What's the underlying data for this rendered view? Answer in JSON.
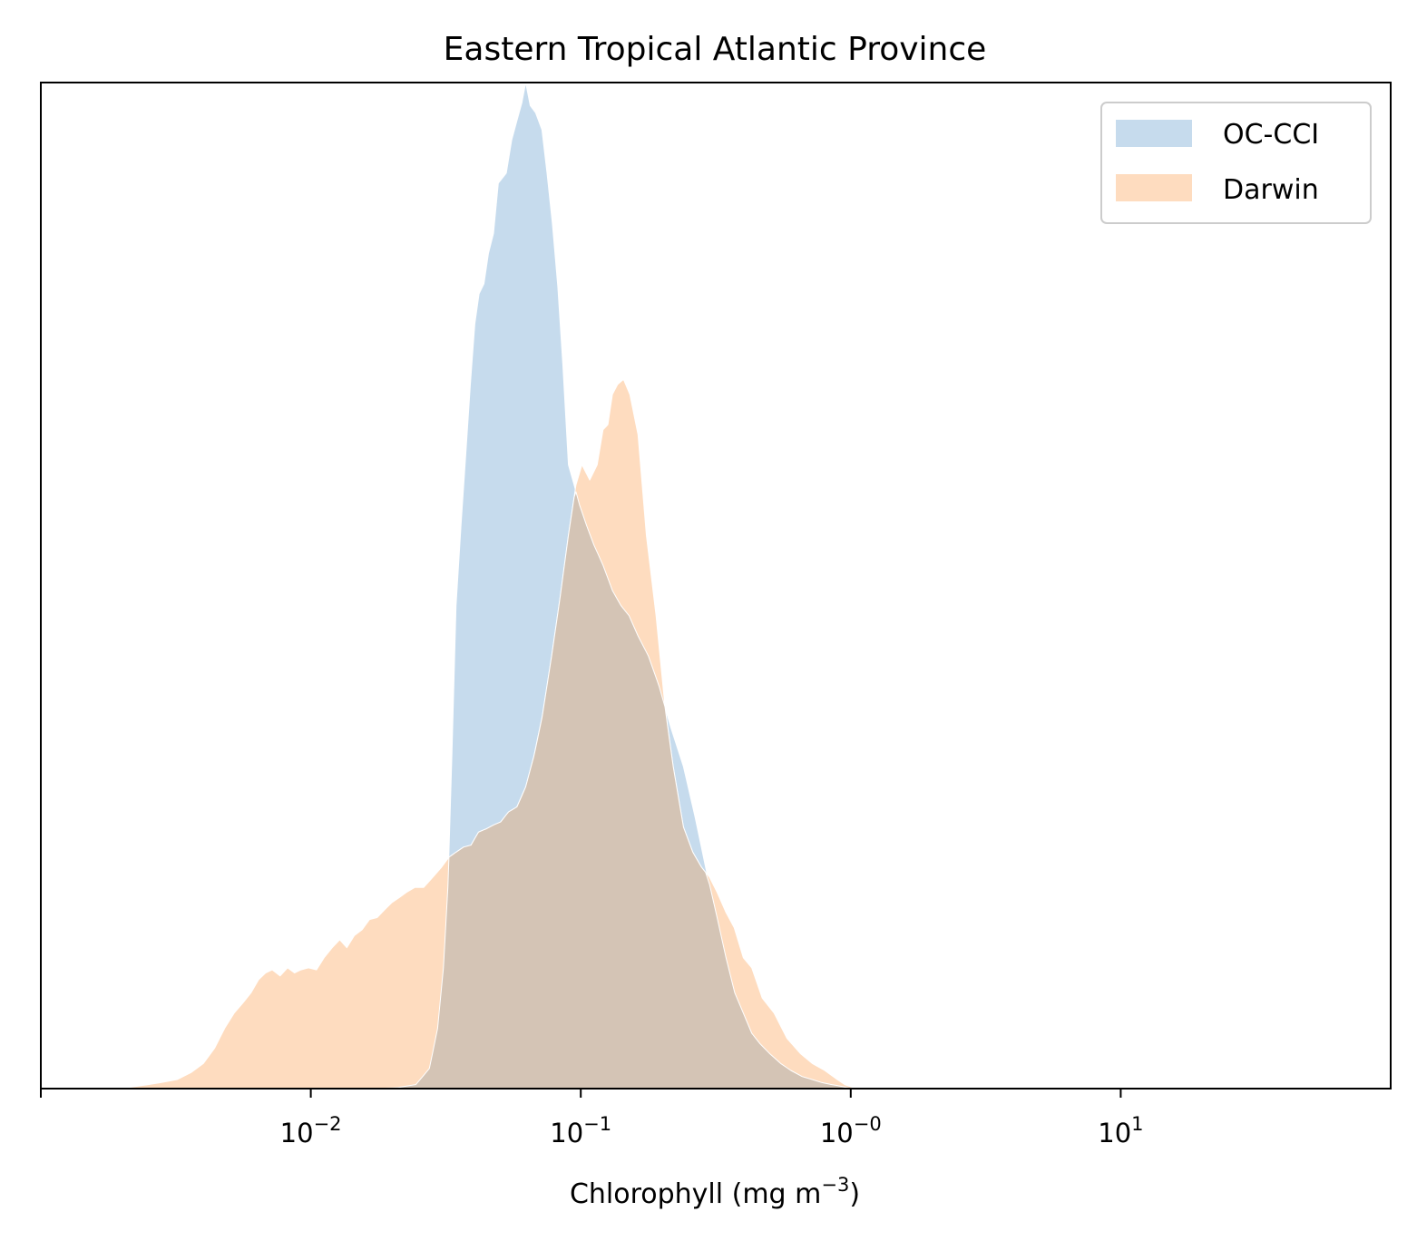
{
  "chart_data": {
    "type": "area",
    "title": "Eastern Tropical Atlantic Province",
    "xlabel_main": "Chlorophyll  (mg m",
    "xlabel_sup": "−3",
    "xlabel_close": ")",
    "ylabel": "",
    "x_scale": "log",
    "xlim": [
      0.001,
      100
    ],
    "ylim": [
      0,
      1
    ],
    "grid": false,
    "y_ticks_visible": false,
    "legend_position": "upper right",
    "x_ticks": [
      {
        "value": 0.001,
        "base": "",
        "exp": ""
      },
      {
        "value": 0.01,
        "base": "10",
        "exp": "−2"
      },
      {
        "value": 0.1,
        "base": "10",
        "exp": "−1"
      },
      {
        "value": 1,
        "base": "10",
        "exp": "−0"
      },
      {
        "value": 10,
        "base": "10",
        "exp": "1"
      }
    ],
    "series": [
      {
        "name": "OC-CCI",
        "color": "#c6dbed",
        "x": [
          0.0174,
          0.021,
          0.0245,
          0.0275,
          0.0295,
          0.031,
          0.0322,
          0.0333,
          0.0345,
          0.036,
          0.0375,
          0.039,
          0.0405,
          0.042,
          0.0438,
          0.0455,
          0.0475,
          0.0495,
          0.0512,
          0.053,
          0.0555,
          0.058,
          0.0605,
          0.0625,
          0.065,
          0.068,
          0.0718,
          0.075,
          0.0785,
          0.0822,
          0.0858,
          0.09,
          0.0945,
          0.099,
          0.105,
          0.112,
          0.121,
          0.131,
          0.141,
          0.151,
          0.163,
          0.178,
          0.195,
          0.215,
          0.24,
          0.265,
          0.29,
          0.32,
          0.345,
          0.372,
          0.4,
          0.43,
          0.46,
          0.5,
          0.55,
          0.6,
          0.66,
          0.72,
          0.78,
          0.85,
          0.93,
          1.0
        ],
        "y": [
          0,
          0.001,
          0.004,
          0.02,
          0.06,
          0.12,
          0.2,
          0.33,
          0.48,
          0.56,
          0.63,
          0.7,
          0.76,
          0.79,
          0.8,
          0.83,
          0.85,
          0.9,
          0.905,
          0.91,
          0.943,
          0.962,
          0.98,
          1.0,
          0.977,
          0.97,
          0.953,
          0.91,
          0.86,
          0.797,
          0.72,
          0.62,
          0.6,
          0.58,
          0.56,
          0.54,
          0.52,
          0.495,
          0.48,
          0.47,
          0.45,
          0.43,
          0.4,
          0.36,
          0.32,
          0.27,
          0.22,
          0.17,
          0.13,
          0.095,
          0.075,
          0.055,
          0.045,
          0.035,
          0.025,
          0.018,
          0.012,
          0.009,
          0.006,
          0.004,
          0.002,
          0
        ]
      },
      {
        "name": "Darwin",
        "color": "#fedcbf",
        "x": [
          0.0021,
          0.0025,
          0.0028,
          0.0032,
          0.0036,
          0.004,
          0.0044,
          0.0048,
          0.0052,
          0.0056,
          0.006,
          0.0064,
          0.0068,
          0.0072,
          0.0077,
          0.0082,
          0.0087,
          0.0092,
          0.0098,
          0.0105,
          0.0112,
          0.012,
          0.0128,
          0.0136,
          0.0145,
          0.0155,
          0.0165,
          0.0176,
          0.0188,
          0.02,
          0.0213,
          0.0226,
          0.0243,
          0.0262,
          0.0283,
          0.0305,
          0.0325,
          0.0345,
          0.0368,
          0.0392,
          0.0418,
          0.0445,
          0.0475,
          0.0505,
          0.054,
          0.058,
          0.0625,
          0.067,
          0.072,
          0.078,
          0.084,
          0.09,
          0.096,
          0.101,
          0.108,
          0.115,
          0.121,
          0.126,
          0.131,
          0.137,
          0.144,
          0.152,
          0.163,
          0.175,
          0.19,
          0.205,
          0.22,
          0.24,
          0.26,
          0.28,
          0.3,
          0.32,
          0.345,
          0.37,
          0.4,
          0.43,
          0.47,
          0.52,
          0.58,
          0.65,
          0.72,
          0.8,
          0.88,
          0.95,
          1.02
        ],
        "y": [
          0.001,
          0.004,
          0.006,
          0.009,
          0.016,
          0.025,
          0.04,
          0.06,
          0.075,
          0.085,
          0.095,
          0.108,
          0.115,
          0.118,
          0.112,
          0.12,
          0.115,
          0.118,
          0.12,
          0.118,
          0.13,
          0.14,
          0.148,
          0.14,
          0.152,
          0.158,
          0.168,
          0.17,
          0.178,
          0.185,
          0.19,
          0.195,
          0.2,
          0.2,
          0.21,
          0.22,
          0.23,
          0.235,
          0.24,
          0.242,
          0.255,
          0.258,
          0.262,
          0.265,
          0.275,
          0.28,
          0.3,
          0.33,
          0.37,
          0.43,
          0.49,
          0.55,
          0.6,
          0.62,
          0.605,
          0.62,
          0.655,
          0.66,
          0.69,
          0.7,
          0.705,
          0.69,
          0.65,
          0.55,
          0.47,
          0.38,
          0.32,
          0.26,
          0.235,
          0.22,
          0.21,
          0.195,
          0.175,
          0.16,
          0.13,
          0.12,
          0.09,
          0.075,
          0.05,
          0.035,
          0.025,
          0.018,
          0.01,
          0.004,
          0.001
        ]
      }
    ],
    "overlap_color": "#d4c4b5"
  }
}
